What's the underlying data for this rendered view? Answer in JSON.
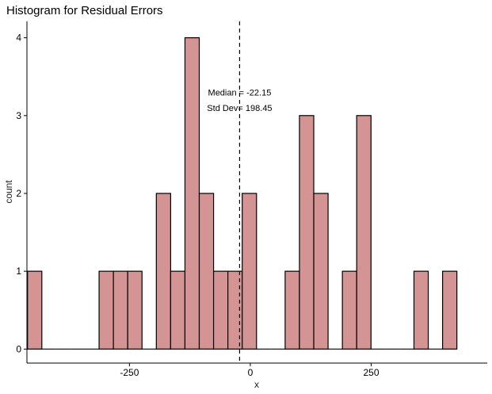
{
  "chart_data": {
    "type": "bar",
    "title": "Histogram for Residual Errors",
    "xlabel": "x",
    "ylabel": "count",
    "bar_fill": "#d49494",
    "bar_stroke": "#000000",
    "xlim": [
      -462,
      490
    ],
    "ylim": [
      -0.18,
      4.21
    ],
    "bin_width": 29.6,
    "x_ticks": [
      {
        "value": -250,
        "label": "-250"
      },
      {
        "value": 0,
        "label": "0"
      },
      {
        "value": 250,
        "label": "250"
      }
    ],
    "y_ticks": [
      {
        "value": 0,
        "label": "0"
      },
      {
        "value": 1,
        "label": "1"
      },
      {
        "value": 2,
        "label": "2"
      },
      {
        "value": 3,
        "label": "3"
      },
      {
        "value": 4,
        "label": "4"
      }
    ],
    "bins": [
      {
        "center": -446,
        "count": 1
      },
      {
        "center": -416.4,
        "count": 0
      },
      {
        "center": -386.8,
        "count": 0
      },
      {
        "center": -357.2,
        "count": 0
      },
      {
        "center": -327.6,
        "count": 0
      },
      {
        "center": -298,
        "count": 1
      },
      {
        "center": -268.4,
        "count": 1
      },
      {
        "center": -238.8,
        "count": 1
      },
      {
        "center": -209.2,
        "count": 0
      },
      {
        "center": -179.6,
        "count": 2
      },
      {
        "center": -150,
        "count": 1
      },
      {
        "center": -120.4,
        "count": 4
      },
      {
        "center": -90.8,
        "count": 2
      },
      {
        "center": -61.2,
        "count": 1
      },
      {
        "center": -31.6,
        "count": 1
      },
      {
        "center": -2,
        "count": 2
      },
      {
        "center": 27.6,
        "count": 0
      },
      {
        "center": 57.2,
        "count": 0
      },
      {
        "center": 86.8,
        "count": 1
      },
      {
        "center": 116.4,
        "count": 3
      },
      {
        "center": 146,
        "count": 2
      },
      {
        "center": 175.6,
        "count": 0
      },
      {
        "center": 205.2,
        "count": 1
      },
      {
        "center": 234.8,
        "count": 3
      },
      {
        "center": 264.4,
        "count": 0
      },
      {
        "center": 294,
        "count": 0
      },
      {
        "center": 323.6,
        "count": 0
      },
      {
        "center": 353.2,
        "count": 1
      },
      {
        "center": 382.8,
        "count": 0
      },
      {
        "center": 412.4,
        "count": 1
      }
    ],
    "median_line": {
      "value": -22.15,
      "style": "dashed"
    },
    "annotations": [
      {
        "text": "Median = -22.15",
        "x": -22.15,
        "y": 3.3
      },
      {
        "text": "Std Dev= 198.45",
        "x": -22.15,
        "y": 3.1
      }
    ],
    "grid": false
  }
}
